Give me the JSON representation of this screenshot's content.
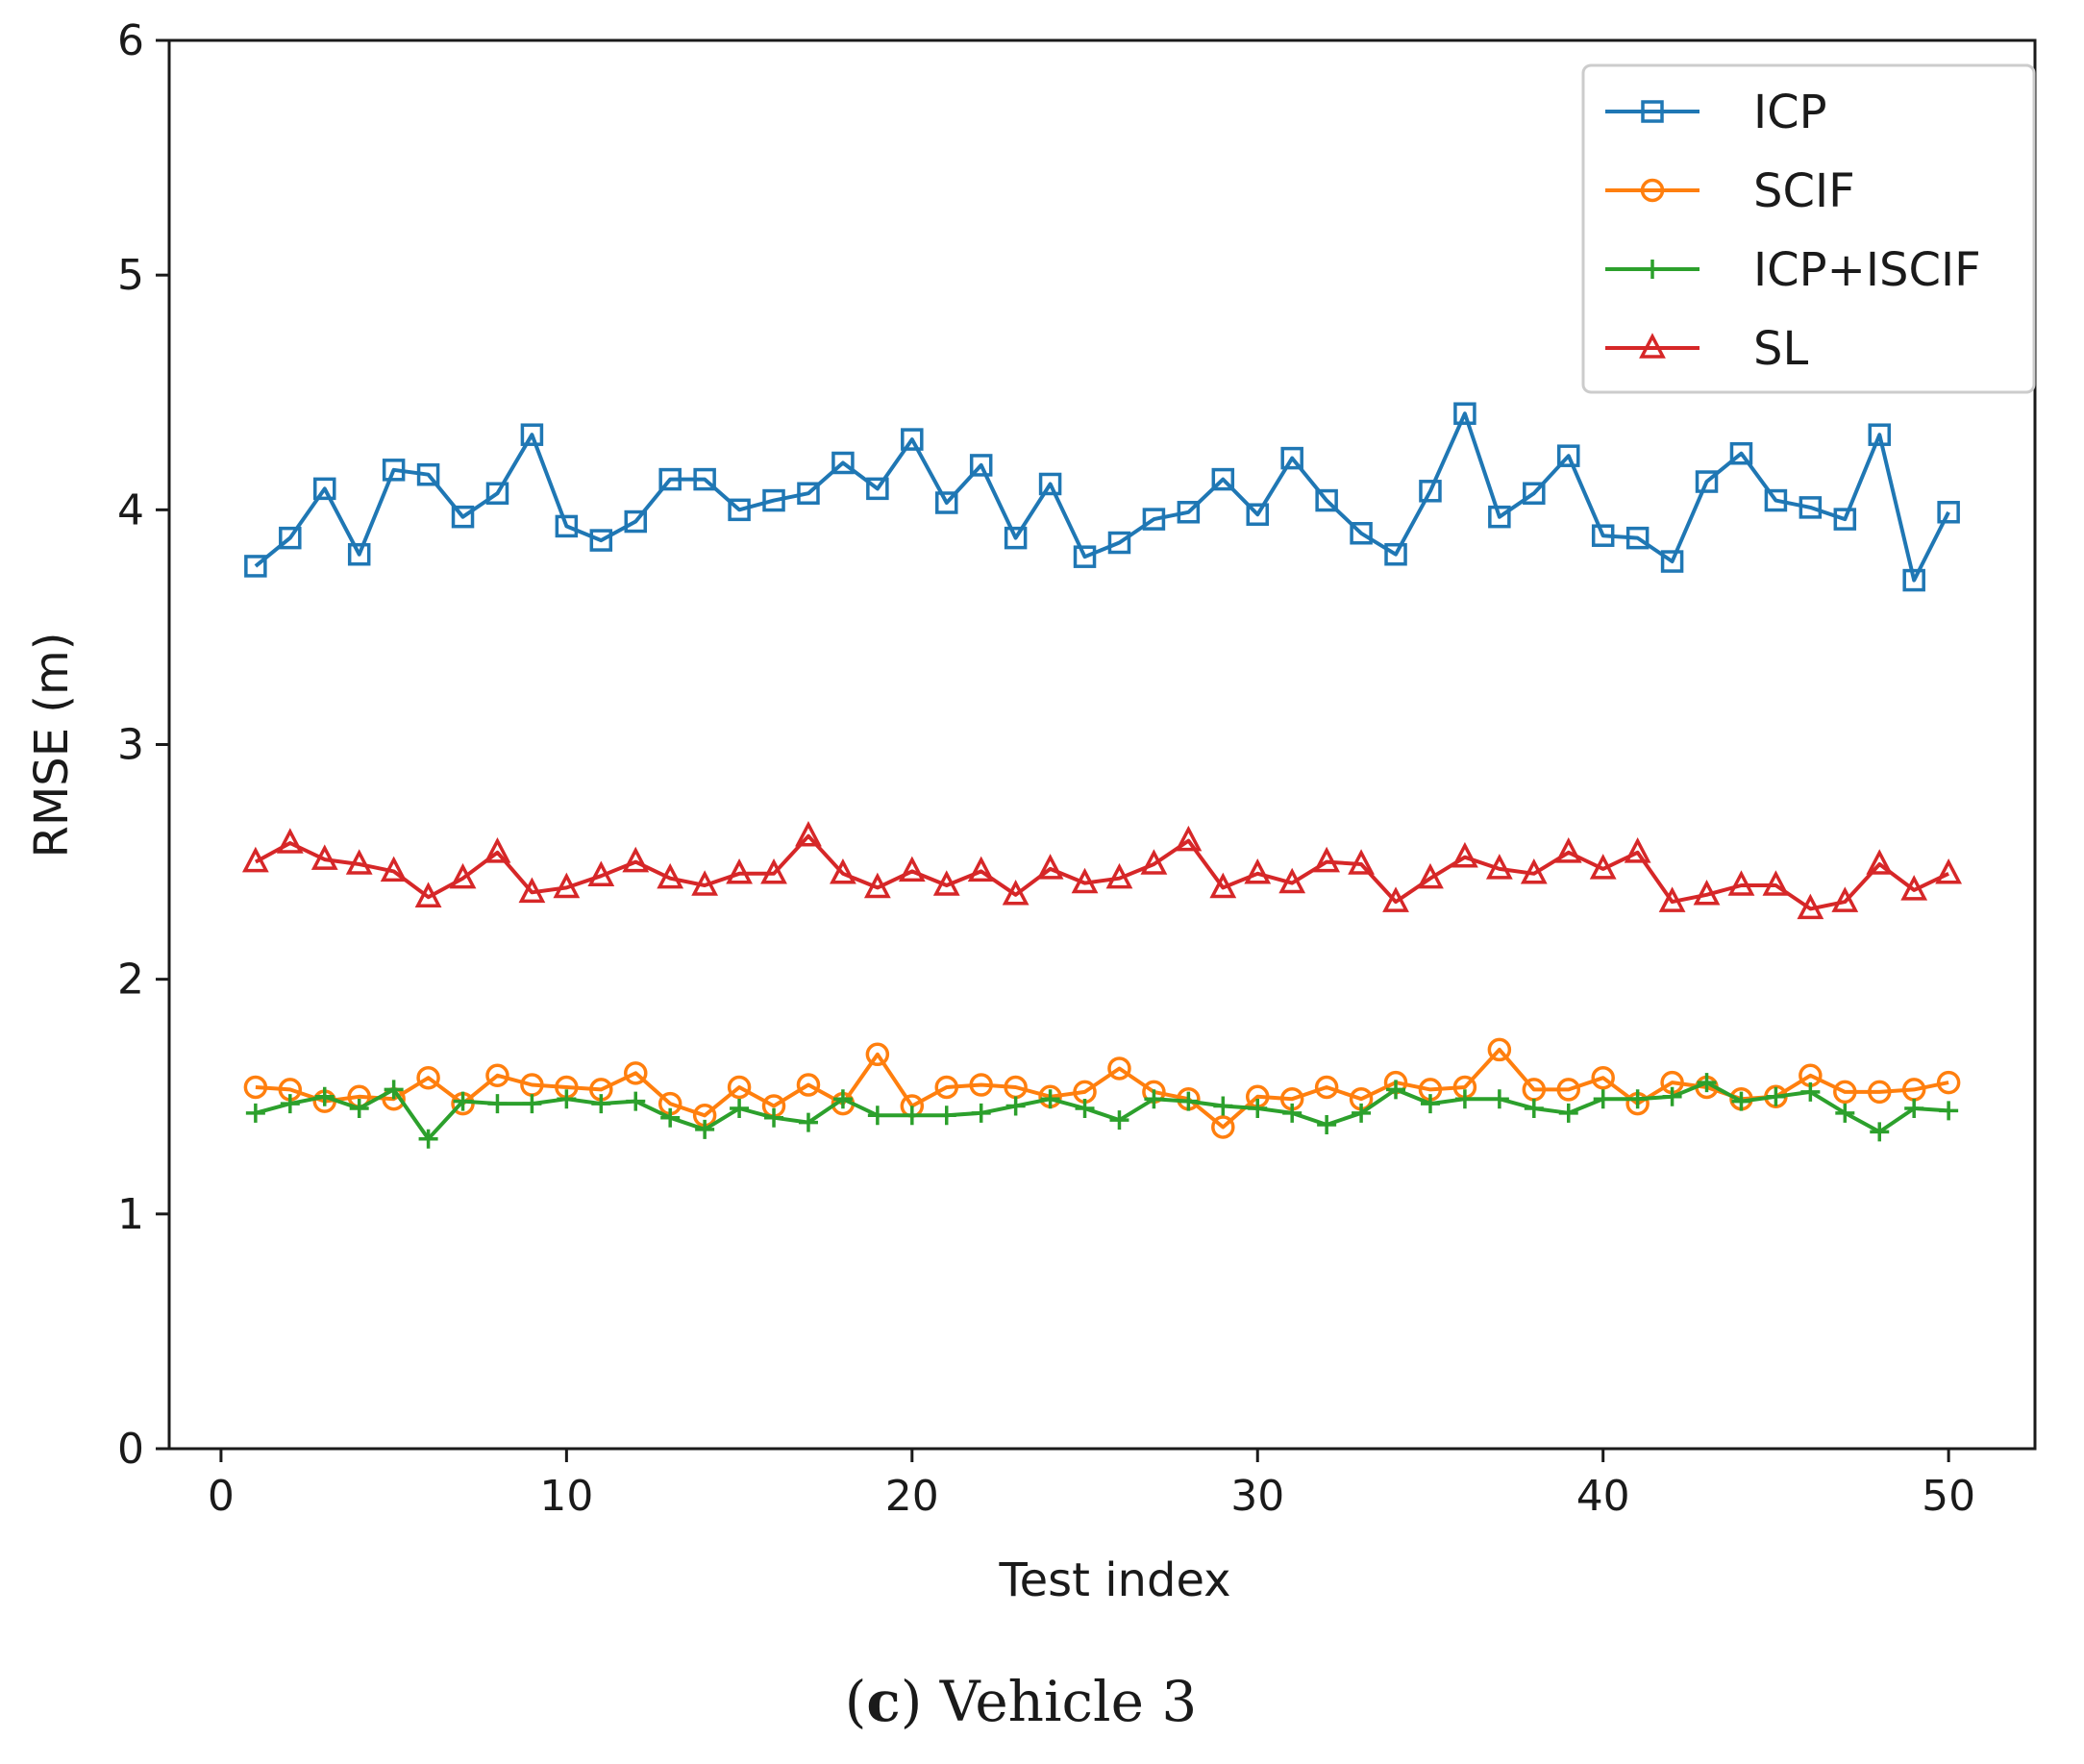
{
  "chart_data": {
    "type": "line",
    "xlabel": "Test index",
    "ylabel": "RMSE (m)",
    "xlim": [
      -1.5,
      52.5
    ],
    "ylim": [
      0,
      6
    ],
    "xticks": [
      0,
      10,
      20,
      30,
      40,
      50
    ],
    "yticks": [
      0,
      1,
      2,
      3,
      4,
      5,
      6
    ],
    "xtick_labels": [
      "0",
      "10",
      "20",
      "30",
      "40",
      "50"
    ],
    "ytick_labels": [
      "0",
      "1",
      "2",
      "3",
      "4",
      "5",
      "6"
    ],
    "grid": false,
    "legend_position": "top-right",
    "x": [
      1,
      2,
      3,
      4,
      5,
      6,
      7,
      8,
      9,
      10,
      11,
      12,
      13,
      14,
      15,
      16,
      17,
      18,
      19,
      20,
      21,
      22,
      23,
      24,
      25,
      26,
      27,
      28,
      29,
      30,
      31,
      32,
      33,
      34,
      35,
      36,
      37,
      38,
      39,
      40,
      41,
      42,
      43,
      44,
      45,
      46,
      47,
      48,
      49,
      50
    ],
    "series": [
      {
        "name": "ICP",
        "color": "#1f77b4",
        "marker": "square",
        "values": [
          3.76,
          3.88,
          4.09,
          3.81,
          4.17,
          4.15,
          3.97,
          4.07,
          4.32,
          3.93,
          3.87,
          3.95,
          4.13,
          4.13,
          4.0,
          4.04,
          4.07,
          4.2,
          4.09,
          4.3,
          4.03,
          4.19,
          3.88,
          4.11,
          3.8,
          3.86,
          3.96,
          3.99,
          4.13,
          3.98,
          4.22,
          4.04,
          3.9,
          3.81,
          4.08,
          4.41,
          3.97,
          4.07,
          4.23,
          3.89,
          3.88,
          3.78,
          4.12,
          4.24,
          4.04,
          4.01,
          3.96,
          4.32,
          3.7,
          3.99
        ]
      },
      {
        "name": "SCIF",
        "color": "#ff7f0e",
        "marker": "circle",
        "values": [
          1.54,
          1.53,
          1.48,
          1.5,
          1.49,
          1.58,
          1.47,
          1.59,
          1.55,
          1.54,
          1.53,
          1.6,
          1.47,
          1.42,
          1.54,
          1.46,
          1.55,
          1.47,
          1.68,
          1.46,
          1.54,
          1.55,
          1.54,
          1.5,
          1.52,
          1.62,
          1.52,
          1.49,
          1.37,
          1.5,
          1.49,
          1.54,
          1.49,
          1.56,
          1.53,
          1.54,
          1.7,
          1.53,
          1.53,
          1.58,
          1.47,
          1.56,
          1.54,
          1.49,
          1.5,
          1.59,
          1.52,
          1.52,
          1.53,
          1.56
        ]
      },
      {
        "name": "ICP+ISCIF",
        "color": "#2ca02c",
        "marker": "plus",
        "values": [
          1.43,
          1.47,
          1.5,
          1.45,
          1.53,
          1.32,
          1.48,
          1.47,
          1.47,
          1.49,
          1.47,
          1.48,
          1.41,
          1.36,
          1.45,
          1.41,
          1.39,
          1.49,
          1.42,
          1.42,
          1.42,
          1.43,
          1.46,
          1.49,
          1.45,
          1.4,
          1.49,
          1.48,
          1.46,
          1.45,
          1.43,
          1.38,
          1.43,
          1.53,
          1.47,
          1.49,
          1.49,
          1.45,
          1.43,
          1.49,
          1.49,
          1.5,
          1.56,
          1.48,
          1.5,
          1.52,
          1.43,
          1.35,
          1.45,
          1.44
        ]
      },
      {
        "name": "SL",
        "color": "#d62728",
        "marker": "triangle",
        "values": [
          2.5,
          2.58,
          2.51,
          2.49,
          2.46,
          2.35,
          2.43,
          2.54,
          2.37,
          2.39,
          2.44,
          2.5,
          2.43,
          2.4,
          2.45,
          2.45,
          2.61,
          2.45,
          2.39,
          2.46,
          2.4,
          2.46,
          2.36,
          2.47,
          2.41,
          2.43,
          2.49,
          2.59,
          2.39,
          2.45,
          2.41,
          2.5,
          2.49,
          2.33,
          2.43,
          2.52,
          2.47,
          2.45,
          2.54,
          2.47,
          2.54,
          2.33,
          2.36,
          2.4,
          2.4,
          2.3,
          2.33,
          2.49,
          2.38,
          2.45
        ]
      }
    ]
  },
  "caption": {
    "label": "(c)",
    "label_letter": "c",
    "text": "Vehicle 3"
  }
}
